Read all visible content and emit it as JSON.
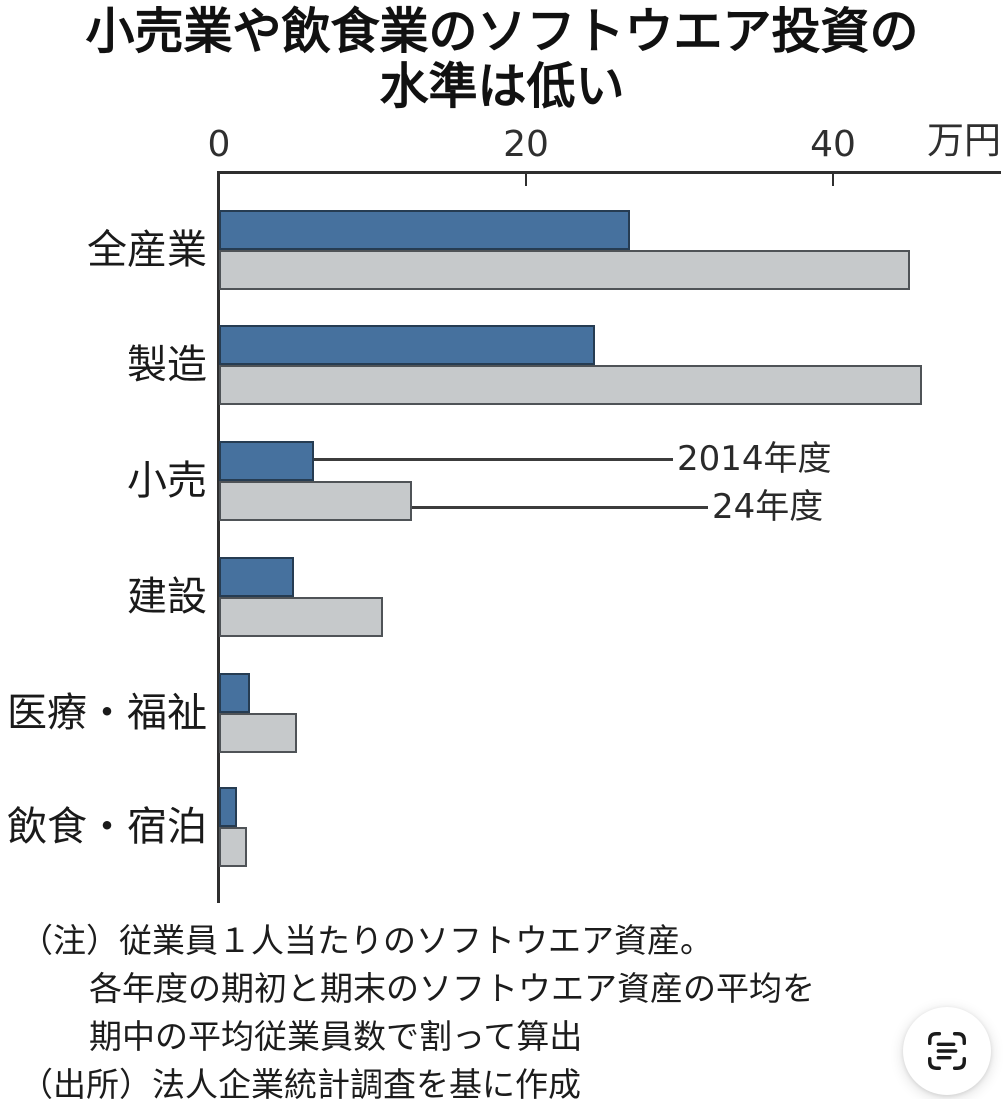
{
  "title": {
    "line1": "小売業や飲食業のソフトウエア投資の",
    "line2": "水準は低い"
  },
  "chart_data": {
    "type": "bar",
    "orientation": "horizontal",
    "title": "小売業や飲食業のソフトウエア投資の水準は低い",
    "unit": "万円",
    "x_ticks": [
      0,
      20,
      40
    ],
    "xlim": [
      0,
      51
    ],
    "grid": false,
    "categories": [
      "全産業",
      "製造",
      "小売",
      "建設",
      "医療・福祉",
      "飲食・宿泊"
    ],
    "series": [
      {
        "name": "2014年度",
        "color": "#46719e",
        "values": [
          26.8,
          24.5,
          6.2,
          4.9,
          2.0,
          1.2
        ]
      },
      {
        "name": "24年度",
        "color": "#c6c9cb",
        "values": [
          45.0,
          45.8,
          12.6,
          10.7,
          5.1,
          1.8
        ]
      }
    ],
    "legend_position": "leader-line annotations pointing at 小売 bars"
  },
  "notes": {
    "line1": "（注）従業員１人当たりのソフトウエア資産。",
    "line2": "各年度の期初と期末のソフトウエア資産の平均を",
    "line3": "期中の平均従業員数で割って算出",
    "source": "（出所）法人企業統計調査を基に作成"
  },
  "colors": {
    "bar_2014_fill": "#46719e",
    "bar_2014_border": "#263c52",
    "bar_24_fill": "#c6c9cb",
    "bar_24_border": "#4f5357",
    "axis": "#2f2f2f",
    "background": "#ffffff"
  },
  "scan_button": {
    "icon": "live-text-scan-icon"
  }
}
